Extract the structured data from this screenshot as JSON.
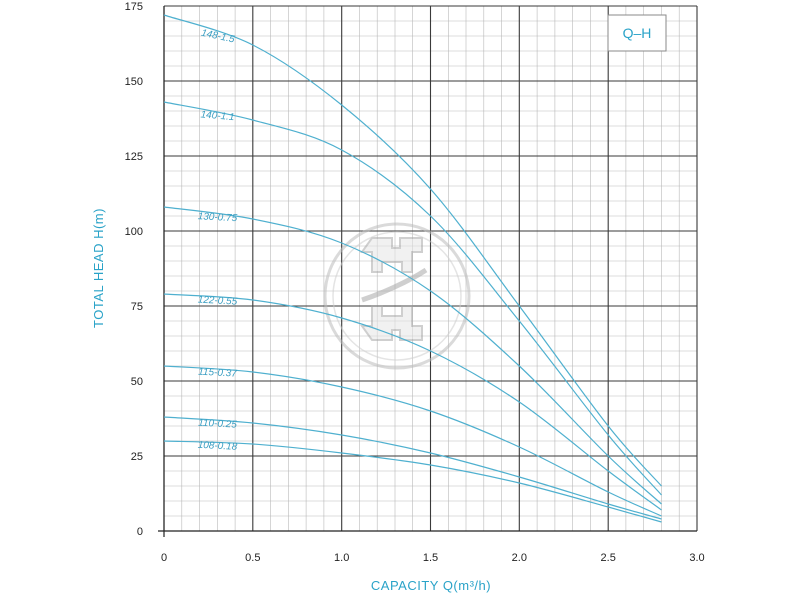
{
  "chart_data": {
    "type": "line",
    "title": "",
    "legend_box": "Q–H",
    "xlabel": "CAPACITY Q(m³/h)",
    "ylabel": "TOTAL HEAD H(m)",
    "xlim": [
      0,
      3.0
    ],
    "ylim": [
      0,
      175
    ],
    "xticks": [
      "0",
      "0.5",
      "1.0",
      "1.5",
      "2.0",
      "2.5",
      "3.0"
    ],
    "yticks": [
      "0",
      "25",
      "50",
      "75",
      "100",
      "125",
      "150",
      "175"
    ],
    "grid": true,
    "legend_position": "top-right",
    "series": [
      {
        "name": "148-1.5",
        "x": [
          0,
          0.5,
          1.0,
          1.5,
          2.0,
          2.5,
          2.8
        ],
        "y": [
          172,
          162,
          142,
          114,
          75,
          35,
          15
        ]
      },
      {
        "name": "140-1.1",
        "x": [
          0,
          0.5,
          1.0,
          1.5,
          2.0,
          2.5,
          2.8
        ],
        "y": [
          143,
          137,
          127,
          105,
          70,
          32,
          12
        ]
      },
      {
        "name": "130-0.75",
        "x": [
          0,
          0.5,
          1.0,
          1.5,
          2.0,
          2.5,
          2.8
        ],
        "y": [
          108,
          104,
          96,
          80,
          55,
          25,
          9
        ]
      },
      {
        "name": "122-0.55",
        "x": [
          0,
          0.5,
          1.0,
          1.5,
          2.0,
          2.5,
          2.8
        ],
        "y": [
          79,
          77,
          71,
          60,
          43,
          20,
          7
        ]
      },
      {
        "name": "115-0.37",
        "x": [
          0,
          0.5,
          1.0,
          1.5,
          2.0,
          2.5,
          2.8
        ],
        "y": [
          55,
          53,
          48,
          40,
          28,
          13,
          5
        ]
      },
      {
        "name": "110-0.25",
        "x": [
          0,
          0.5,
          1.0,
          1.5,
          2.0,
          2.5,
          2.8
        ],
        "y": [
          38,
          36,
          32,
          26,
          18,
          9,
          4
        ]
      },
      {
        "name": "108-0.18",
        "x": [
          0,
          0.5,
          1.0,
          1.5,
          2.0,
          2.5,
          2.8
        ],
        "y": [
          30,
          29,
          26,
          22,
          16,
          8,
          3
        ]
      }
    ]
  },
  "colors": {
    "curve": "#4fb0cf",
    "axis_title": "#2aa3c8",
    "major_grid": "#3a3a3a",
    "minor_grid": "#b9b9b9"
  }
}
